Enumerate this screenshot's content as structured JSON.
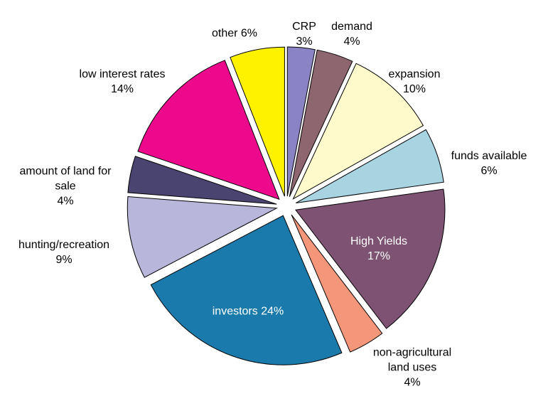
{
  "chart_data": {
    "type": "pie",
    "categories": [
      "CRP",
      "demand",
      "expansion",
      "funds available",
      "High Yields",
      "non-agricultural land uses",
      "investors",
      "hunting/recreation",
      "amount of land for sale",
      "low interest rates",
      "other"
    ],
    "values": [
      3,
      4,
      10,
      6,
      17,
      4,
      24,
      9,
      4,
      14,
      6
    ],
    "value_labels": [
      "3%",
      "4%",
      "10%",
      "6%",
      "17%",
      "4%",
      "24%",
      "9%",
      "4%",
      "14%",
      "6%"
    ],
    "colors": [
      "#8a84c4",
      "#8e6670",
      "#fffacc",
      "#a8d3e0",
      "#7e5272",
      "#f4967a",
      "#1a7aab",
      "#b8b6da",
      "#4a4470",
      "#ec098c",
      "#fff200"
    ]
  }
}
